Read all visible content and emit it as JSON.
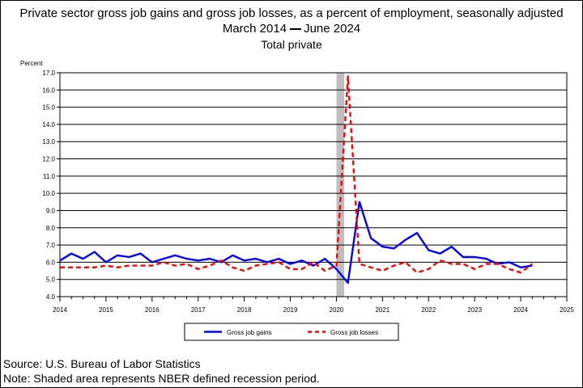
{
  "title": "Private sector gross job gains and gross job losses, as a percent of employment, seasonally adjusted",
  "subtitle_start": "March 2014",
  "subtitle_end": "June 2024",
  "series_group": "Total private",
  "source": "Source: U.S. Bureau of Labor Statistics",
  "note": "Note: Shaded area represents NBER defined recession period.",
  "colors": {
    "gains": "#0000ff",
    "losses": "#ff0000",
    "recession": "#bebebe"
  },
  "chart_data": {
    "type": "line",
    "ylabel": "Percent",
    "xlim": [
      2014,
      2025
    ],
    "ylim": [
      4.0,
      17.0
    ],
    "x_ticks": [
      "2014",
      "2015",
      "2016",
      "2017",
      "2018",
      "2019",
      "2020",
      "2021",
      "2022",
      "2023",
      "2024",
      "2025"
    ],
    "y_ticks": [
      "4.0",
      "5.0",
      "6.0",
      "7.0",
      "8.0",
      "9.0",
      "10.0",
      "11.0",
      "12.0",
      "13.0",
      "14.0",
      "15.0",
      "16.0",
      "17.0"
    ],
    "grid": true,
    "legend_position": "bottom-center",
    "recession": [
      2020.0,
      2020.17
    ],
    "x": [
      2014.0,
      2014.25,
      2014.5,
      2014.75,
      2015.0,
      2015.25,
      2015.5,
      2015.75,
      2016.0,
      2016.25,
      2016.5,
      2016.75,
      2017.0,
      2017.25,
      2017.5,
      2017.75,
      2018.0,
      2018.25,
      2018.5,
      2018.75,
      2019.0,
      2019.25,
      2019.5,
      2019.75,
      2020.0,
      2020.25,
      2020.5,
      2020.75,
      2021.0,
      2021.25,
      2021.5,
      2021.75,
      2022.0,
      2022.25,
      2022.5,
      2022.75,
      2023.0,
      2023.25,
      2023.5,
      2023.75,
      2024.0,
      2024.25
    ],
    "series": [
      {
        "name": "Gross job gains",
        "values": [
          6.1,
          6.5,
          6.2,
          6.6,
          6.0,
          6.4,
          6.3,
          6.5,
          6.0,
          6.2,
          6.4,
          6.2,
          6.1,
          6.2,
          6.0,
          6.4,
          6.1,
          6.2,
          6.0,
          6.2,
          5.9,
          6.1,
          5.8,
          6.2,
          5.6,
          4.8,
          9.5,
          7.4,
          6.9,
          6.8,
          7.3,
          7.7,
          6.7,
          6.5,
          6.9,
          6.3,
          6.3,
          6.2,
          5.9,
          6.0,
          5.7,
          5.8
        ]
      },
      {
        "name": "Gross job losses",
        "values": [
          5.7,
          5.7,
          5.7,
          5.7,
          5.8,
          5.7,
          5.8,
          5.8,
          5.8,
          6.0,
          5.8,
          5.9,
          5.6,
          5.8,
          6.1,
          5.7,
          5.5,
          5.8,
          5.9,
          6.0,
          5.6,
          5.6,
          6.0,
          5.5,
          5.8,
          16.8,
          5.9,
          5.7,
          5.5,
          5.8,
          6.0,
          5.4,
          5.6,
          6.1,
          5.9,
          5.9,
          5.6,
          5.9,
          5.9,
          5.6,
          5.4,
          5.9
        ]
      }
    ]
  }
}
